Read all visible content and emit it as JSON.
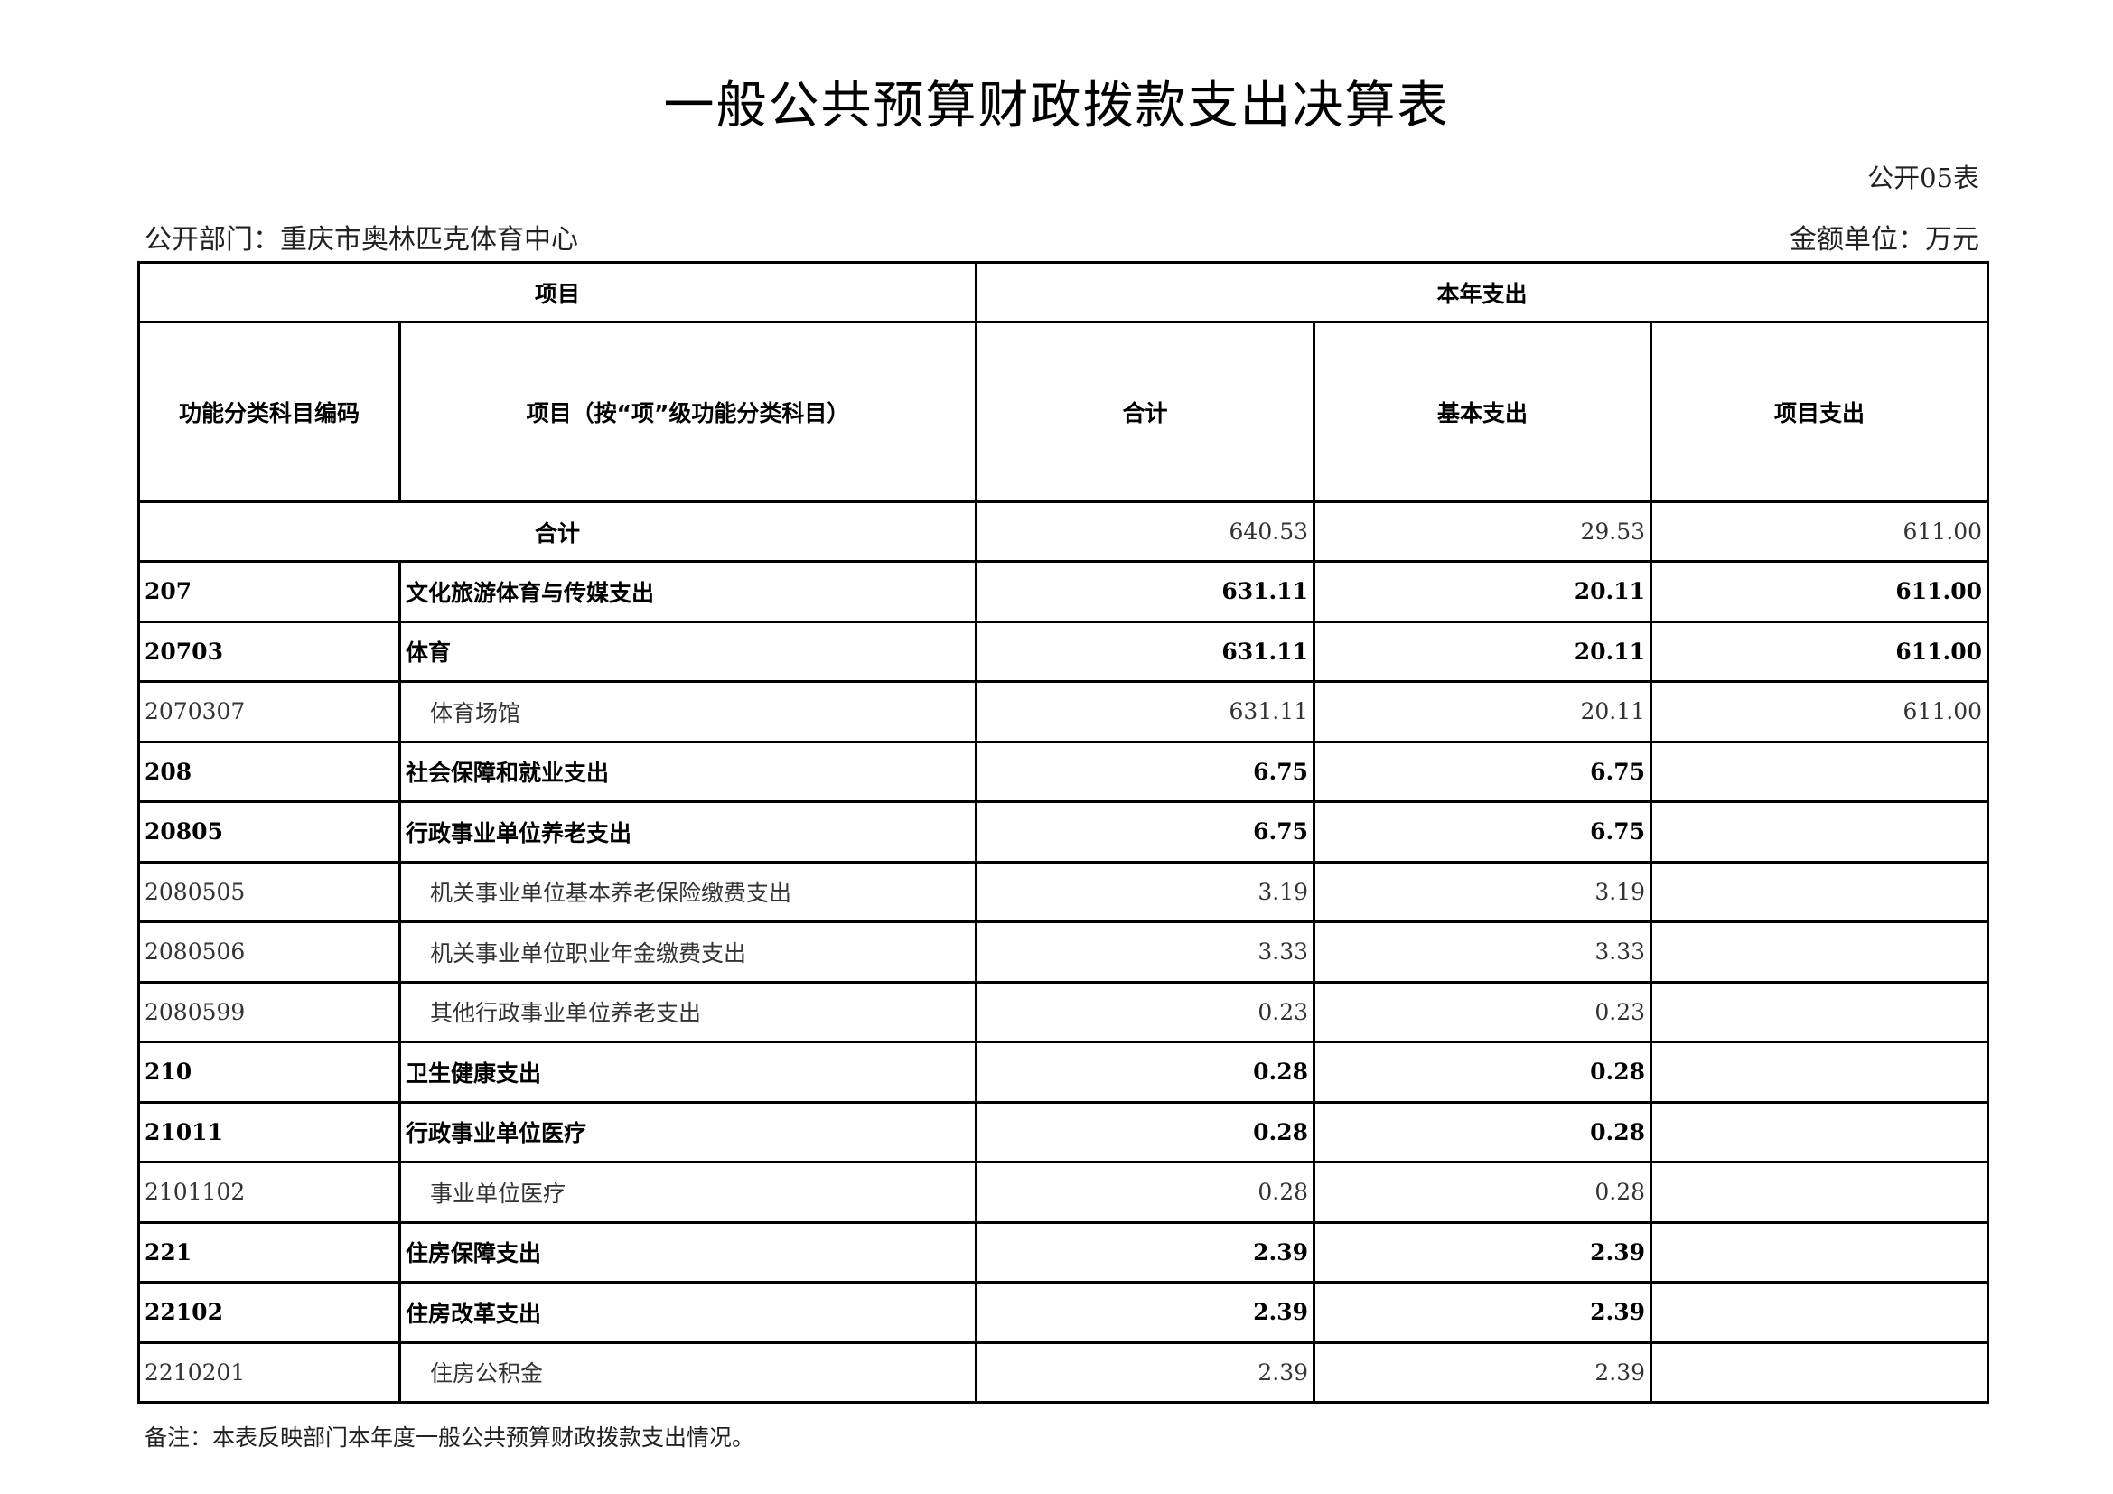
{
  "title": "一般公共预算财政拨款支出决算表",
  "table_no": "公开05表",
  "dept": "公开部门：重庆市奥林匹克体育中心",
  "unit": "金额单位：万元",
  "headers": {
    "project": "项目",
    "current_year": "本年支出",
    "code": "功能分类科目编码",
    "item": "项目（按“项”级功能分类科目）",
    "total": "合计",
    "basic": "基本支出",
    "project_exp": "项目支出"
  },
  "total_row": {
    "label": "合计",
    "total": "640.53",
    "basic": "29.53",
    "project": "611.00"
  },
  "rows": [
    {
      "code": "207",
      "name": "文化旅游体育与传媒支出",
      "total": "631.11",
      "basic": "20.11",
      "project": "611.00",
      "bold": true
    },
    {
      "code": "20703",
      "name": "体育",
      "total": "631.11",
      "basic": "20.11",
      "project": "611.00",
      "bold": true
    },
    {
      "code": "2070307",
      "name": "体育场馆",
      "total": "631.11",
      "basic": "20.11",
      "project": "611.00",
      "bold": false
    },
    {
      "code": "208",
      "name": "社会保障和就业支出",
      "total": "6.75",
      "basic": "6.75",
      "project": "",
      "bold": true
    },
    {
      "code": "20805",
      "name": "行政事业单位养老支出",
      "total": "6.75",
      "basic": "6.75",
      "project": "",
      "bold": true
    },
    {
      "code": "2080505",
      "name": "机关事业单位基本养老保险缴费支出",
      "total": "3.19",
      "basic": "3.19",
      "project": "",
      "bold": false
    },
    {
      "code": "2080506",
      "name": "机关事业单位职业年金缴费支出",
      "total": "3.33",
      "basic": "3.33",
      "project": "",
      "bold": false
    },
    {
      "code": "2080599",
      "name": "其他行政事业单位养老支出",
      "total": "0.23",
      "basic": "0.23",
      "project": "",
      "bold": false
    },
    {
      "code": "210",
      "name": "卫生健康支出",
      "total": "0.28",
      "basic": "0.28",
      "project": "",
      "bold": true
    },
    {
      "code": "21011",
      "name": "行政事业单位医疗",
      "total": "0.28",
      "basic": "0.28",
      "project": "",
      "bold": true
    },
    {
      "code": "2101102",
      "name": "事业单位医疗",
      "total": "0.28",
      "basic": "0.28",
      "project": "",
      "bold": false
    },
    {
      "code": "221",
      "name": "住房保障支出",
      "total": "2.39",
      "basic": "2.39",
      "project": "",
      "bold": true
    },
    {
      "code": "22102",
      "name": "住房改革支出",
      "total": "2.39",
      "basic": "2.39",
      "project": "",
      "bold": true
    },
    {
      "code": "2210201",
      "name": "住房公积金",
      "total": "2.39",
      "basic": "2.39",
      "project": "",
      "bold": false
    }
  ],
  "note": "备注：本表反映部门本年度一般公共预算财政拨款支出情况。"
}
